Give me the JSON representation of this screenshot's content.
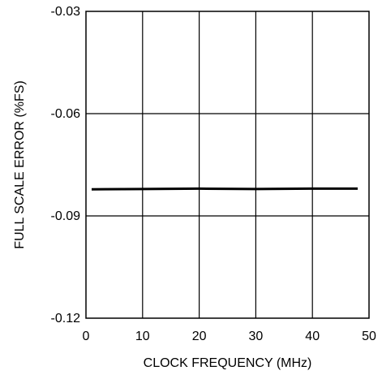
{
  "chart_data": {
    "type": "line",
    "title": "",
    "xlabel": "CLOCK FREQUENCY (MHz)",
    "ylabel": "FULL SCALE ERROR (%FS)",
    "xlim": [
      0,
      50
    ],
    "ylim": [
      -0.12,
      -0.03
    ],
    "xticks": [
      0,
      10,
      20,
      30,
      40,
      50
    ],
    "xtick_labels": [
      "0",
      "10",
      "20",
      "30",
      "40",
      "50"
    ],
    "yticks": [
      -0.03,
      -0.06,
      -0.09,
      -0.12
    ],
    "ytick_labels": [
      "-0.03",
      "-0.06",
      "-0.09",
      "-0.12"
    ],
    "grid": true,
    "legend": "none",
    "series": [
      {
        "x": [
          1,
          10,
          20,
          30,
          40,
          48
        ],
        "y": [
          -0.0822,
          -0.0821,
          -0.082,
          -0.0821,
          -0.082,
          -0.082
        ]
      }
    ]
  }
}
